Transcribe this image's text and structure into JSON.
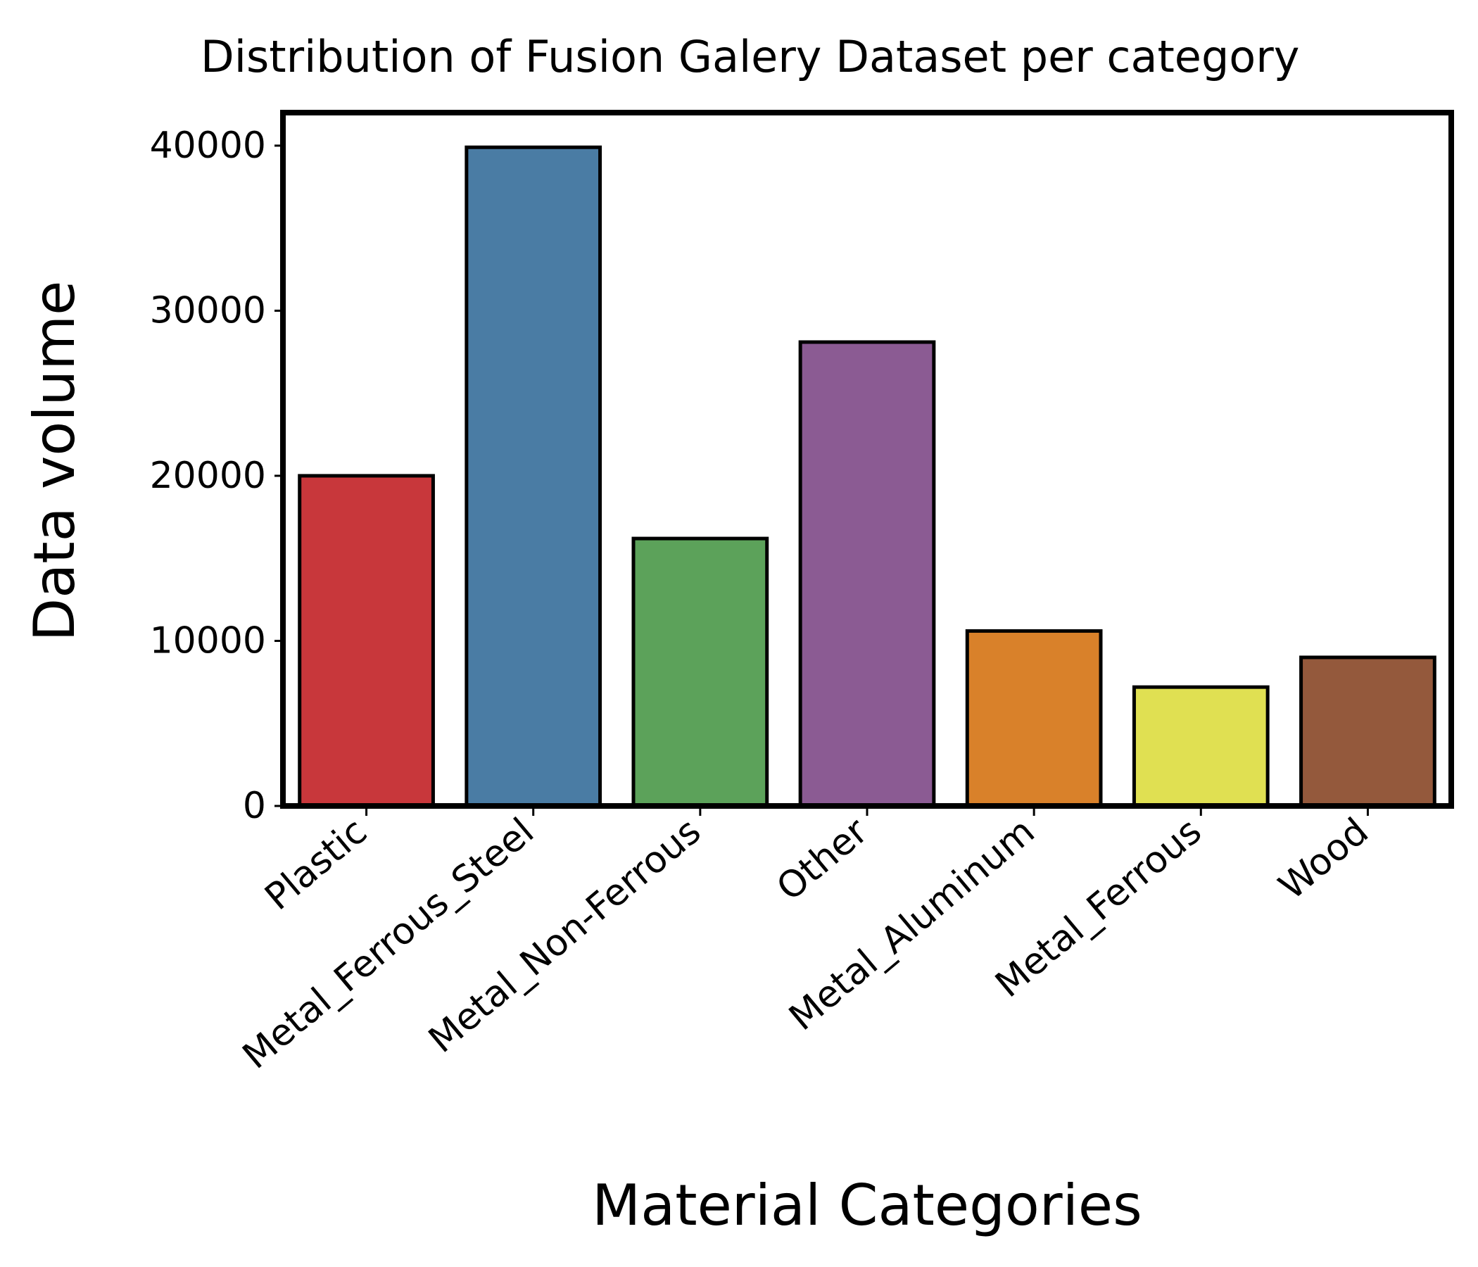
{
  "chart_data": {
    "type": "bar",
    "title": "Distribution of Fusion Galery Dataset per category",
    "xlabel": "Material Categories",
    "ylabel": "Data volume",
    "categories": [
      "Plastic",
      "Metal_Ferrous_Steel",
      "Metal_Non-Ferrous",
      "Other",
      "Metal_Aluminum",
      "Metal_Ferrous",
      "Wood"
    ],
    "values": [
      20000,
      39900,
      16200,
      28100,
      10600,
      7200,
      9000
    ],
    "colors": [
      "#c8373b",
      "#4a7ca4",
      "#5ca25a",
      "#8b5b93",
      "#d9812a",
      "#e0e052",
      "#94593c"
    ],
    "ylim": [
      0,
      42000
    ],
    "yticks": [
      "0",
      "10000",
      "20000",
      "30000",
      "40000"
    ],
    "grid": false,
    "legend": "none"
  }
}
